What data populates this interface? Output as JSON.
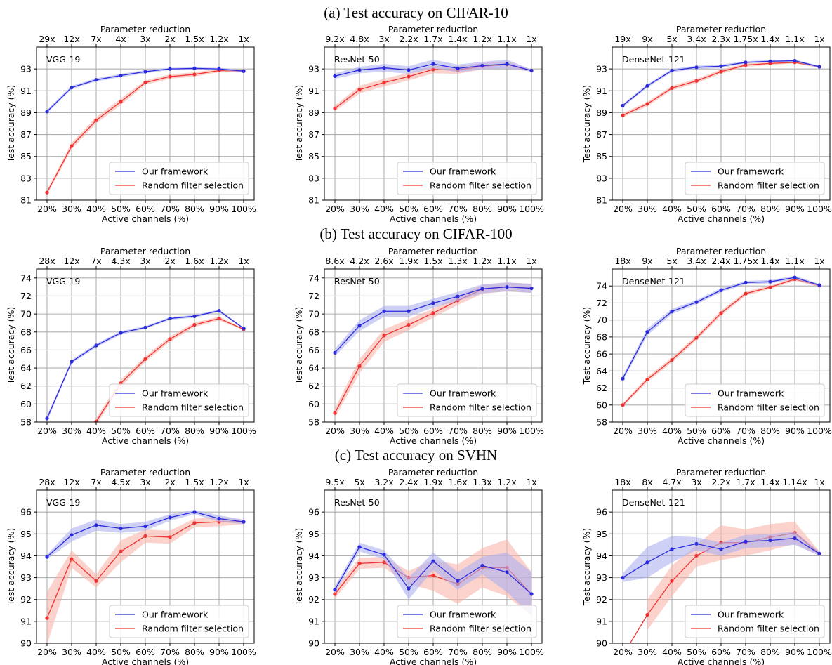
{
  "row_titles": [
    "(a) Test accuracy on CIFAR-10",
    "(b) Test accuracy on CIFAR-100",
    "(c) Test accuracy on SVHN"
  ],
  "colors": {
    "ours": "#2b2bdc",
    "ours_band": "#aeb0f0",
    "random": "#f03232",
    "random_band": "#f8b4aa"
  },
  "chart_data": [
    {
      "type": "line",
      "dataset": "CIFAR-10",
      "model_label": "VGG-19",
      "xlabel": "Active channels (%)",
      "ylabel": "Test accuracy (%)",
      "top_xlabel": "Parameter reduction",
      "x": [
        "20%",
        "30%",
        "40%",
        "50%",
        "60%",
        "70%",
        "80%",
        "90%",
        "100%"
      ],
      "top_ticks": [
        "29x",
        "12x",
        "7x",
        "4x",
        "3x",
        "2x",
        "1.5x",
        "1.2x",
        "1x"
      ],
      "ylim": [
        81,
        95
      ],
      "yticks": [
        81,
        83,
        85,
        87,
        89,
        91,
        93
      ],
      "grid": true,
      "legend_position": "lower-right",
      "series": [
        {
          "name": "Our framework",
          "values": [
            89.1,
            91.3,
            92.0,
            92.4,
            92.75,
            93.0,
            93.05,
            93.0,
            92.8
          ],
          "band": [
            0.15,
            0.15,
            0.15,
            0.15,
            0.15,
            0.1,
            0.1,
            0.1,
            0.1
          ]
        },
        {
          "name": "Random filter selection",
          "values": [
            81.7,
            85.95,
            88.3,
            90.0,
            91.75,
            92.3,
            92.5,
            92.85,
            92.8
          ],
          "band": [
            0.2,
            0.3,
            0.3,
            0.3,
            0.2,
            0.2,
            0.2,
            0.15,
            0.1
          ]
        }
      ]
    },
    {
      "type": "line",
      "dataset": "CIFAR-10",
      "model_label": "ResNet-50",
      "xlabel": "Active channels (%)",
      "ylabel": "Test accuracy (%)",
      "top_xlabel": "Parameter reduction",
      "x": [
        "20%",
        "30%",
        "40%",
        "50%",
        "60%",
        "70%",
        "80%",
        "90%",
        "100%"
      ],
      "top_ticks": [
        "9.2x",
        "4.8x",
        "3x",
        "2.2x",
        "1.7x",
        "1.4x",
        "1.2x",
        "1.1x",
        "1x"
      ],
      "ylim": [
        81,
        95
      ],
      "yticks": [
        81,
        83,
        85,
        87,
        89,
        91,
        93
      ],
      "grid": true,
      "legend_position": "lower-right",
      "series": [
        {
          "name": "Our framework",
          "values": [
            92.35,
            92.9,
            93.1,
            92.9,
            93.45,
            93.05,
            93.3,
            93.45,
            92.85
          ],
          "band": [
            0.25,
            0.3,
            0.35,
            0.35,
            0.4,
            0.35,
            0.35,
            0.4,
            0.1
          ]
        },
        {
          "name": "Random filter selection",
          "values": [
            89.4,
            91.1,
            91.75,
            92.3,
            92.95,
            92.9,
            93.25,
            93.4,
            92.85
          ],
          "band": [
            0.25,
            0.35,
            0.35,
            0.35,
            0.35,
            0.35,
            0.3,
            0.3,
            0.1
          ]
        }
      ]
    },
    {
      "type": "line",
      "dataset": "CIFAR-10",
      "model_label": "DenseNet-121",
      "xlabel": "Active channels (%)",
      "ylabel": "Test accuracy (%)",
      "top_xlabel": "Parameter reduction",
      "x": [
        "20%",
        "30%",
        "40%",
        "50%",
        "60%",
        "70%",
        "80%",
        "90%",
        "100%"
      ],
      "top_ticks": [
        "19x",
        "9x",
        "5x",
        "3.4x",
        "2.3x",
        "1.75x",
        "1.4x",
        "1.1x",
        "1x"
      ],
      "ylim": [
        81,
        95
      ],
      "yticks": [
        81,
        83,
        85,
        87,
        89,
        91,
        93
      ],
      "grid": true,
      "legend_position": "lower-right",
      "series": [
        {
          "name": "Our framework",
          "values": [
            89.65,
            91.45,
            92.85,
            93.15,
            93.25,
            93.6,
            93.7,
            93.75,
            93.2
          ],
          "band": [
            0.15,
            0.15,
            0.15,
            0.15,
            0.15,
            0.1,
            0.1,
            0.1,
            0.1
          ]
        },
        {
          "name": "Random filter selection",
          "values": [
            88.75,
            89.8,
            91.25,
            91.9,
            92.75,
            93.35,
            93.5,
            93.6,
            93.2
          ],
          "band": [
            0.2,
            0.2,
            0.2,
            0.2,
            0.2,
            0.15,
            0.15,
            0.1,
            0.1
          ]
        }
      ]
    },
    {
      "type": "line",
      "dataset": "CIFAR-100",
      "model_label": "VGG-19",
      "xlabel": "Active channels (%)",
      "ylabel": "Test accuracy (%)",
      "top_xlabel": "Parameter reduction",
      "x": [
        "20%",
        "30%",
        "40%",
        "50%",
        "60%",
        "70%",
        "80%",
        "90%",
        "100%"
      ],
      "top_ticks": [
        "28x",
        "12x",
        "7x",
        "4.3x",
        "3x",
        "2x",
        "1.6x",
        "1.2x",
        "1x"
      ],
      "ylim": [
        58,
        75
      ],
      "yticks": [
        58,
        60,
        62,
        64,
        66,
        68,
        70,
        72,
        74
      ],
      "grid": true,
      "legend_position": "lower-right",
      "series": [
        {
          "name": "Our framework",
          "values": [
            58.4,
            64.7,
            66.5,
            67.9,
            68.5,
            69.5,
            69.75,
            70.35,
            68.4
          ],
          "band": [
            0.3,
            0.2,
            0.2,
            0.2,
            0.15,
            0.15,
            0.15,
            0.15,
            0.1
          ]
        },
        {
          "name": "Random filter selection",
          "values": [
            null,
            null,
            58.05,
            62.3,
            65.0,
            67.2,
            68.8,
            69.5,
            68.3
          ],
          "band": [
            0,
            0,
            0.4,
            0.4,
            0.3,
            0.3,
            0.25,
            0.2,
            0.1
          ]
        }
      ]
    },
    {
      "type": "line",
      "dataset": "CIFAR-100",
      "model_label": "ResNet-50",
      "xlabel": "Active channels (%)",
      "ylabel": "Test accuracy (%)",
      "top_xlabel": "Parameter reduction",
      "x": [
        "20%",
        "30%",
        "40%",
        "50%",
        "60%",
        "70%",
        "80%",
        "90%",
        "100%"
      ],
      "top_ticks": [
        "8.6x",
        "4.2x",
        "2.6x",
        "1.9x",
        "1.5x",
        "1.3x",
        "1.2x",
        "1.1x",
        "1x"
      ],
      "ylim": [
        58,
        75
      ],
      "yticks": [
        58,
        60,
        62,
        64,
        66,
        68,
        70,
        72,
        74
      ],
      "grid": true,
      "legend_position": "lower-right",
      "series": [
        {
          "name": "Our framework",
          "values": [
            65.7,
            68.7,
            70.3,
            70.3,
            71.2,
            71.95,
            72.8,
            73.0,
            72.85
          ],
          "band": [
            0.4,
            0.6,
            0.6,
            0.6,
            0.5,
            0.5,
            0.5,
            0.5,
            0.5
          ]
        },
        {
          "name": "Random filter selection",
          "values": [
            59.0,
            64.2,
            67.6,
            68.8,
            70.1,
            71.5,
            72.75,
            73.0,
            72.85
          ],
          "band": [
            0.5,
            0.8,
            0.7,
            0.6,
            0.5,
            0.5,
            0.5,
            0.5,
            0.5
          ]
        }
      ]
    },
    {
      "type": "line",
      "dataset": "CIFAR-100",
      "model_label": "DenseNet-121",
      "xlabel": "Active channels (%)",
      "ylabel": "Test accuracy (%)",
      "top_xlabel": "Parameter reduction",
      "x": [
        "20%",
        "30%",
        "40%",
        "50%",
        "60%",
        "70%",
        "80%",
        "90%",
        "100%"
      ],
      "top_ticks": [
        "18x",
        "9x",
        "5x",
        "3.4x",
        "2.4x",
        "1.75x",
        "1.4x",
        "1.1x",
        "1x"
      ],
      "ylim": [
        58,
        76
      ],
      "yticks": [
        58,
        60,
        62,
        64,
        66,
        68,
        70,
        72,
        74
      ],
      "grid": true,
      "legend_position": "lower-right",
      "series": [
        {
          "name": "Our framework",
          "values": [
            63.1,
            68.6,
            71.0,
            72.1,
            73.5,
            74.4,
            74.5,
            75.0,
            74.1
          ],
          "band": [
            0.3,
            0.4,
            0.3,
            0.25,
            0.25,
            0.2,
            0.2,
            0.2,
            0.15
          ]
        },
        {
          "name": "Random filter selection",
          "values": [
            60.0,
            63.0,
            65.3,
            67.9,
            70.8,
            73.1,
            73.85,
            74.8,
            74.05
          ],
          "band": [
            0.2,
            0.3,
            0.3,
            0.3,
            0.3,
            0.25,
            0.2,
            0.2,
            0.15
          ]
        }
      ]
    },
    {
      "type": "line",
      "dataset": "SVHN",
      "model_label": "VGG-19",
      "xlabel": "Active channels (%)",
      "ylabel": "Test accuracy (%)",
      "top_xlabel": "Parameter reduction",
      "x": [
        "20%",
        "30%",
        "40%",
        "50%",
        "60%",
        "70%",
        "80%",
        "90%",
        "100%"
      ],
      "top_ticks": [
        "28x",
        "12x",
        "7x",
        "4.5x",
        "3x",
        "2x",
        "1.5x",
        "1.2x",
        "1x"
      ],
      "ylim": [
        90,
        97
      ],
      "yticks": [
        90,
        91,
        92,
        93,
        94,
        95,
        96
      ],
      "grid": true,
      "legend_position": "lower-right",
      "series": [
        {
          "name": "Our framework",
          "values": [
            93.95,
            94.95,
            95.4,
            95.25,
            95.35,
            95.75,
            96.0,
            95.7,
            95.55
          ],
          "band": [
            0.1,
            0.3,
            0.25,
            0.2,
            0.2,
            0.15,
            0.1,
            0.15,
            0.1
          ]
        },
        {
          "name": "Random filter selection",
          "values": [
            91.15,
            93.85,
            92.85,
            94.2,
            94.9,
            94.85,
            95.5,
            95.55,
            95.55
          ],
          "band": [
            1.2,
            0.4,
            0.3,
            0.5,
            0.3,
            0.3,
            0.2,
            0.2,
            0.1
          ]
        }
      ]
    },
    {
      "type": "line",
      "dataset": "SVHN",
      "model_label": "ResNet-50",
      "xlabel": "Active channels (%)",
      "ylabel": "Test accuracy (%)",
      "top_xlabel": "Parameter reduction",
      "x": [
        "20%",
        "30%",
        "40%",
        "50%",
        "60%",
        "70%",
        "80%",
        "90%",
        "100%"
      ],
      "top_ticks": [
        "9.5x",
        "5x",
        "3.2x",
        "2.4x",
        "1.9x",
        "1.6x",
        "1.3x",
        "1.2x",
        "1x"
      ],
      "ylim": [
        90,
        97
      ],
      "yticks": [
        90,
        91,
        92,
        93,
        94,
        95,
        96
      ],
      "grid": true,
      "legend_position": "lower-right",
      "series": [
        {
          "name": "Our framework",
          "values": [
            92.45,
            94.4,
            94.05,
            92.5,
            93.75,
            92.85,
            93.55,
            93.25,
            92.25
          ],
          "band": [
            0.15,
            0.2,
            0.2,
            0.5,
            0.4,
            0.4,
            0.4,
            0.9,
            1.0
          ]
        },
        {
          "name": "Random filter selection",
          "values": [
            92.25,
            93.65,
            93.7,
            93.0,
            93.1,
            92.7,
            93.45,
            93.45,
            92.25
          ],
          "band": [
            0.2,
            0.25,
            0.25,
            0.3,
            0.7,
            0.9,
            0.9,
            1.3,
            1.0
          ]
        }
      ]
    },
    {
      "type": "line",
      "dataset": "SVHN",
      "model_label": "DenseNet-121",
      "xlabel": "Active channels (%)",
      "ylabel": "Test accuracy (%)",
      "top_xlabel": "Parameter reduction",
      "x": [
        "20%",
        "30%",
        "40%",
        "50%",
        "60%",
        "70%",
        "80%",
        "90%",
        "100%"
      ],
      "top_ticks": [
        "18x",
        "8x",
        "4.7x",
        "3x",
        "2.2x",
        "1.7x",
        "1.4x",
        "1.14x",
        "1x"
      ],
      "ylim": [
        90,
        97
      ],
      "yticks": [
        90,
        91,
        92,
        93,
        94,
        95,
        96
      ],
      "grid": true,
      "legend_position": "lower-right",
      "series": [
        {
          "name": "Our framework",
          "values": [
            93.0,
            93.7,
            94.3,
            94.55,
            94.3,
            94.65,
            94.7,
            94.8,
            94.1
          ],
          "band": [
            0.2,
            0.7,
            0.6,
            0.3,
            0.3,
            0.3,
            0.3,
            0.3,
            0.1
          ]
        },
        {
          "name": "Random filter selection",
          "values": [
            null,
            91.3,
            92.85,
            94.0,
            94.6,
            94.6,
            94.85,
            95.05,
            94.1
          ],
          "band": [
            0,
            0.7,
            0.7,
            0.5,
            0.8,
            0.6,
            0.6,
            0.5,
            0.1
          ]
        }
      ]
    }
  ]
}
